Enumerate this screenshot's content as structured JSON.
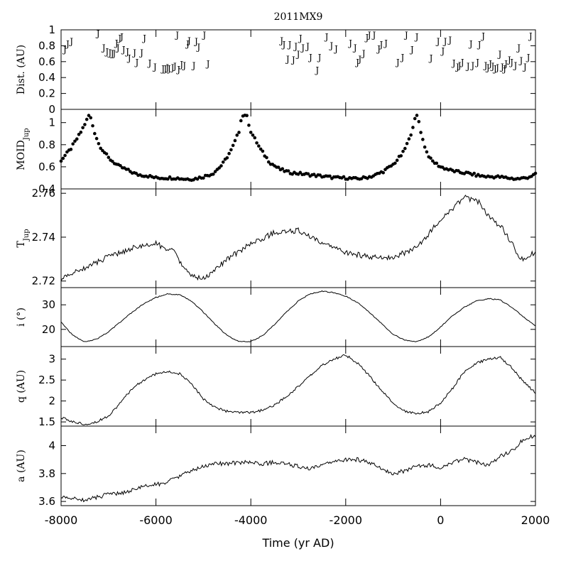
{
  "title": "2011MX9",
  "xlabel": "Time (yr AD)",
  "chart_data": {
    "type": "line",
    "title": "2011MX9",
    "xlabel": "Time (yr AD)",
    "xlim": [
      -8000,
      2000
    ],
    "xticks": [
      "-8000",
      "-6000",
      "-4000",
      "-2000",
      "0",
      "2000"
    ],
    "panels": [
      {
        "ylabel": "Dist. (AU)",
        "kind": "marker",
        "marker": "J",
        "ylim": [
          0,
          1
        ],
        "yticks": [
          "0",
          "0.2",
          "0.4",
          "0.6",
          "0.8",
          "1"
        ],
        "x": [
          -7920,
          -7860,
          -7780,
          -7220,
          -7100,
          -7030,
          -6970,
          -6920,
          -6880,
          -6830,
          -6800,
          -6760,
          -6720,
          -6680,
          -6600,
          -6560,
          -6450,
          -6400,
          -6300,
          -6240,
          -6130,
          -6020,
          -5850,
          -5800,
          -5760,
          -5720,
          -5650,
          -5600,
          -5550,
          -5520,
          -5460,
          -5400,
          -5330,
          -5300,
          -5200,
          -5150,
          -5100,
          -4980,
          -4900,
          -3350,
          -3300,
          -3220,
          -3180,
          -3100,
          -3050,
          -3000,
          -2950,
          -2900,
          -2800,
          -2740,
          -2600,
          -2550,
          -2400,
          -2300,
          -2200,
          -1900,
          -1800,
          -1750,
          -1700,
          -1620,
          -1550,
          -1500,
          -1400,
          -1300,
          -1250,
          -1150,
          -900,
          -800,
          -720,
          -600,
          -500,
          -200,
          -50,
          50,
          100,
          200,
          280,
          360,
          400,
          460,
          580,
          640,
          680,
          780,
          820,
          900,
          950,
          1000,
          1050,
          1100,
          1150,
          1200,
          1250,
          1300,
          1350,
          1380,
          1450,
          1500,
          1580,
          1650,
          1700,
          1780,
          1850,
          1900
        ],
        "y": [
          0.76,
          0.83,
          0.86,
          0.96,
          0.78,
          0.73,
          0.72,
          0.71,
          0.71,
          0.84,
          0.78,
          0.9,
          0.92,
          0.76,
          0.73,
          0.65,
          0.72,
          0.6,
          0.72,
          0.9,
          0.59,
          0.54,
          0.52,
          0.52,
          0.53,
          0.52,
          0.53,
          0.55,
          0.94,
          0.51,
          0.57,
          0.56,
          0.83,
          0.87,
          0.56,
          0.86,
          0.79,
          0.94,
          0.58,
          0.87,
          0.82,
          0.64,
          0.82,
          0.63,
          0.8,
          0.7,
          0.9,
          0.78,
          0.8,
          0.66,
          0.5,
          0.66,
          0.92,
          0.81,
          0.77,
          0.84,
          0.78,
          0.6,
          0.64,
          0.71,
          0.91,
          0.94,
          0.94,
          0.77,
          0.82,
          0.84,
          0.6,
          0.66,
          0.94,
          0.76,
          0.92,
          0.65,
          0.86,
          0.74,
          0.86,
          0.88,
          0.59,
          0.54,
          0.56,
          0.6,
          0.55,
          0.83,
          0.56,
          0.6,
          0.82,
          0.93,
          0.56,
          0.53,
          0.58,
          0.55,
          0.52,
          0.53,
          0.7,
          0.54,
          0.52,
          0.58,
          0.63,
          0.6,
          0.56,
          0.78,
          0.62,
          0.54,
          0.66,
          0.93
        ]
      },
      {
        "ylabel": "MOID_Jup",
        "kind": "scatter",
        "ylim": [
          0.4,
          1.12
        ],
        "yticks": [
          "0.4",
          "0.6",
          "0.8",
          "1"
        ],
        "x": [
          -8000,
          -7800,
          -7600,
          -7450,
          -7400,
          -7300,
          -7200,
          -7000,
          -6800,
          -6600,
          -6400,
          -6200,
          -6000,
          -5800,
          -5600,
          -5400,
          -5200,
          -5000,
          -4800,
          -4600,
          -4400,
          -4250,
          -4200,
          -4100,
          -4000,
          -3800,
          -3600,
          -3400,
          -3200,
          -3000,
          -2800,
          -2600,
          -2400,
          -2200,
          -2000,
          -1800,
          -1600,
          -1400,
          -1200,
          -1000,
          -800,
          -650,
          -550,
          -500,
          -450,
          -400,
          -300,
          -200,
          0,
          200,
          400,
          600,
          800,
          1000,
          1200,
          1400,
          1600,
          1800,
          2000
        ],
        "y": [
          0.66,
          0.76,
          0.9,
          1.03,
          1.08,
          0.92,
          0.8,
          0.68,
          0.61,
          0.57,
          0.53,
          0.52,
          0.5,
          0.5,
          0.5,
          0.49,
          0.49,
          0.51,
          0.54,
          0.62,
          0.76,
          0.92,
          1.05,
          1.08,
          0.92,
          0.76,
          0.64,
          0.58,
          0.55,
          0.54,
          0.53,
          0.52,
          0.51,
          0.5,
          0.5,
          0.49,
          0.5,
          0.52,
          0.56,
          0.62,
          0.72,
          0.86,
          1.02,
          1.06,
          1.0,
          0.88,
          0.74,
          0.66,
          0.6,
          0.57,
          0.55,
          0.54,
          0.52,
          0.51,
          0.51,
          0.5,
          0.49,
          0.5,
          0.53
        ]
      },
      {
        "ylabel": "T_Jup",
        "kind": "line",
        "ylim": [
          2.717,
          2.762
        ],
        "yticks": [
          "2.72",
          "2.74",
          "2.76"
        ],
        "x": [
          -8000,
          -7500,
          -7000,
          -6500,
          -6000,
          -5600,
          -5400,
          -5200,
          -5000,
          -4800,
          -4500,
          -4000,
          -3500,
          -3000,
          -2500,
          -2000,
          -1500,
          -1000,
          -500,
          0,
          500,
          800,
          1000,
          1300,
          1500,
          1700,
          2000
        ],
        "y": [
          2.721,
          2.726,
          2.731,
          2.735,
          2.737,
          2.733,
          2.725,
          2.722,
          2.721,
          2.724,
          2.73,
          2.737,
          2.742,
          2.743,
          2.737,
          2.733,
          2.731,
          2.731,
          2.735,
          2.748,
          2.758,
          2.756,
          2.75,
          2.744,
          2.737,
          2.73,
          2.733
        ]
      },
      {
        "ylabel": "i (°)",
        "kind": "line",
        "ylim": [
          13,
          37
        ],
        "yticks": [
          "20",
          "30"
        ],
        "x": [
          -8000,
          -7750,
          -7500,
          -7250,
          -7000,
          -6750,
          -6500,
          -6250,
          -6000,
          -5750,
          -5500,
          -5250,
          -5000,
          -4750,
          -4500,
          -4250,
          -4000,
          -3750,
          -3500,
          -3250,
          -3000,
          -2750,
          -2500,
          -2250,
          -2000,
          -1750,
          -1500,
          -1250,
          -1000,
          -750,
          -500,
          -250,
          0,
          250,
          500,
          750,
          1000,
          1250,
          1500,
          1750,
          2000
        ],
        "y": [
          23,
          17.5,
          15,
          16,
          19,
          23,
          27,
          30.5,
          33,
          34.5,
          34,
          31.5,
          27,
          22,
          17.5,
          15,
          15,
          17.5,
          22,
          27,
          31.5,
          34.5,
          35.5,
          35,
          33.5,
          31,
          27,
          22.5,
          18,
          15.5,
          15,
          17,
          21,
          25.5,
          29,
          31.5,
          32.5,
          32,
          29,
          25,
          21.5
        ]
      },
      {
        "ylabel": "q (AU)",
        "kind": "line",
        "ylim": [
          1.4,
          3.3
        ],
        "yticks": [
          "1.5",
          "2",
          "2.5",
          "3"
        ],
        "x": [
          -8000,
          -7750,
          -7500,
          -7250,
          -7000,
          -6750,
          -6500,
          -6250,
          -6000,
          -5750,
          -5500,
          -5250,
          -5000,
          -4750,
          -4500,
          -4250,
          -4000,
          -3750,
          -3500,
          -3250,
          -3000,
          -2750,
          -2500,
          -2250,
          -2000,
          -1750,
          -1500,
          -1250,
          -1000,
          -750,
          -500,
          -250,
          0,
          250,
          500,
          750,
          1000,
          1250,
          1500,
          1750,
          2000
        ],
        "y": [
          1.6,
          1.5,
          1.45,
          1.5,
          1.65,
          1.95,
          2.3,
          2.5,
          2.65,
          2.7,
          2.65,
          2.4,
          2.05,
          1.85,
          1.75,
          1.72,
          1.72,
          1.78,
          1.9,
          2.1,
          2.35,
          2.6,
          2.85,
          3.0,
          3.1,
          2.9,
          2.6,
          2.25,
          1.95,
          1.75,
          1.7,
          1.75,
          1.95,
          2.3,
          2.7,
          2.9,
          3.0,
          3.05,
          2.8,
          2.45,
          2.2
        ]
      },
      {
        "ylabel": "a (AU)",
        "kind": "line",
        "ylim": [
          3.57,
          4.14
        ],
        "yticks": [
          "3.6",
          "3.8",
          "4"
        ],
        "x": [
          -8000,
          -7750,
          -7500,
          -7250,
          -7000,
          -6750,
          -6500,
          -6250,
          -6000,
          -5750,
          -5500,
          -5250,
          -5000,
          -4750,
          -4500,
          -4250,
          -4000,
          -3750,
          -3500,
          -3250,
          -3000,
          -2750,
          -2500,
          -2250,
          -2000,
          -1750,
          -1500,
          -1250,
          -1000,
          -750,
          -500,
          -250,
          0,
          250,
          500,
          750,
          1000,
          1250,
          1500,
          1750,
          2000
        ],
        "y": [
          3.63,
          3.62,
          3.61,
          3.63,
          3.65,
          3.66,
          3.68,
          3.71,
          3.72,
          3.74,
          3.78,
          3.82,
          3.85,
          3.87,
          3.87,
          3.88,
          3.88,
          3.87,
          3.88,
          3.87,
          3.85,
          3.83,
          3.86,
          3.88,
          3.9,
          3.9,
          3.88,
          3.84,
          3.8,
          3.82,
          3.85,
          3.86,
          3.84,
          3.88,
          3.9,
          3.88,
          3.86,
          3.92,
          3.96,
          4.05,
          4.07
        ]
      }
    ]
  }
}
